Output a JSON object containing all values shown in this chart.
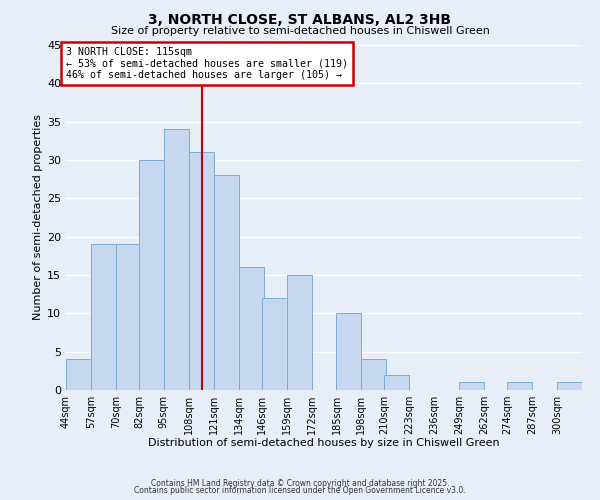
{
  "title": "3, NORTH CLOSE, ST ALBANS, AL2 3HB",
  "subtitle": "Size of property relative to semi-detached houses in Chiswell Green",
  "xlabel": "Distribution of semi-detached houses by size in Chiswell Green",
  "ylabel": "Number of semi-detached properties",
  "bin_labels": [
    "44sqm",
    "57sqm",
    "70sqm",
    "82sqm",
    "95sqm",
    "108sqm",
    "121sqm",
    "134sqm",
    "146sqm",
    "159sqm",
    "172sqm",
    "185sqm",
    "198sqm",
    "210sqm",
    "223sqm",
    "236sqm",
    "249sqm",
    "262sqm",
    "274sqm",
    "287sqm",
    "300sqm"
  ],
  "bin_edges": [
    44,
    57,
    70,
    82,
    95,
    108,
    121,
    134,
    146,
    159,
    172,
    185,
    198,
    210,
    223,
    236,
    249,
    262,
    274,
    287,
    300
  ],
  "bar_heights": [
    4,
    19,
    19,
    30,
    34,
    31,
    28,
    16,
    12,
    15,
    0,
    10,
    4,
    2,
    0,
    0,
    1,
    0,
    1,
    0,
    1
  ],
  "bar_color": "#c5d8f0",
  "bar_edgecolor": "#7badd4",
  "reference_line_x": 115,
  "reference_line_color": "#cc0000",
  "ylim": [
    0,
    45
  ],
  "yticks": [
    0,
    5,
    10,
    15,
    20,
    25,
    30,
    35,
    40,
    45
  ],
  "annotation_title": "3 NORTH CLOSE: 115sqm",
  "annotation_line1": "← 53% of semi-detached houses are smaller (119)",
  "annotation_line2": "46% of semi-detached houses are larger (105) →",
  "annotation_box_facecolor": "#ffffff",
  "annotation_box_edgecolor": "#cc0000",
  "background_color": "#e8eef8",
  "grid_color": "#ffffff",
  "footer1": "Contains HM Land Registry data © Crown copyright and database right 2025.",
  "footer2": "Contains public sector information licensed under the Open Government Licence v3.0."
}
